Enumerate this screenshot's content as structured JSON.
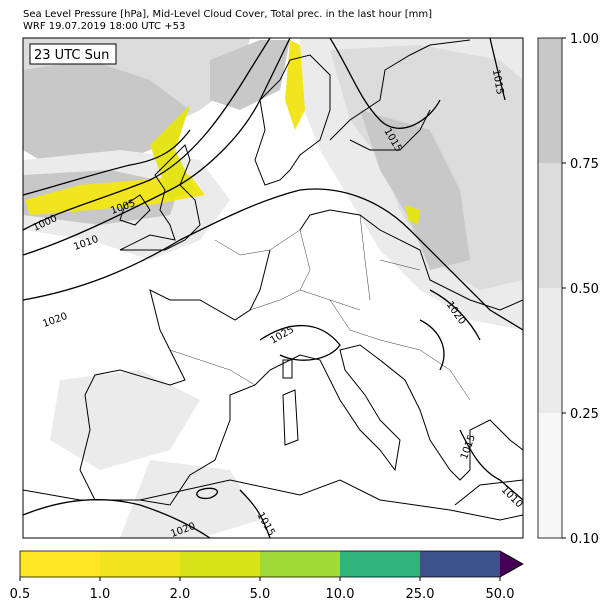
{
  "header": {
    "title": "Sea Level Pressure [hPa], Mid-Level Cloud Cover, Total prec. in the last hour [mm]",
    "subtitle": "WRF 19.07.2019 18:00 UTC +53"
  },
  "map": {
    "time_label": "23 UTC Sun",
    "contour_labels": [
      "1000",
      "1005",
      "1010",
      "1020",
      "1025",
      "1020",
      "1015",
      "1015",
      "1015",
      "1010",
      "1015",
      "1020"
    ]
  },
  "cloud_colorbar": {
    "ticks": [
      "0.10",
      "0.25",
      "0.50",
      "0.75",
      "1.00"
    ]
  },
  "precip_colorbar": {
    "ticks": [
      "0.5",
      "1.0",
      "2.0",
      "5.0",
      "10.0",
      "25.0",
      "50.0"
    ]
  }
}
